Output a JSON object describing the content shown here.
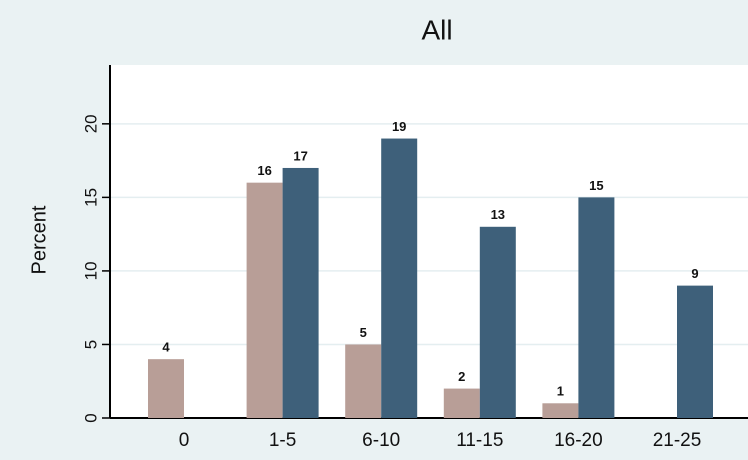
{
  "chart_data": {
    "type": "bar",
    "title": "All",
    "y_label": "Percent",
    "categories": [
      "0",
      "1-5",
      "6-10",
      "11-15",
      "16-20",
      "21-25"
    ],
    "series": [
      {
        "color": "#b89e97",
        "values": [
          4,
          16,
          5,
          2,
          1,
          null
        ]
      },
      {
        "color": "#3e607a",
        "values": [
          null,
          17,
          19,
          13,
          15,
          9
        ]
      }
    ],
    "ylim": [
      0,
      24
    ],
    "yticks": [
      0,
      5,
      10,
      15,
      20
    ],
    "grid": true
  }
}
